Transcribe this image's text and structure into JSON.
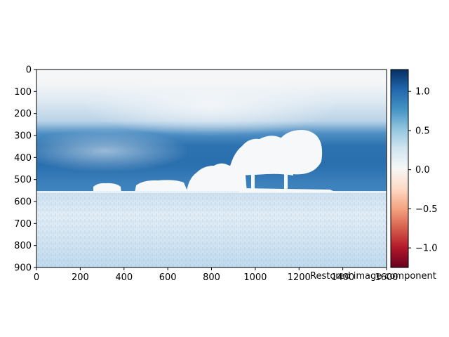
{
  "chart_data": [
    {
      "type": "heatmap",
      "title": "",
      "xlabel": "",
      "ylabel": "",
      "xlim": [
        0,
        1600
      ],
      "ylim": [
        900,
        0
      ],
      "x_ticks": [
        "0",
        "200",
        "400",
        "600",
        "800",
        "1000",
        "1200",
        "1400",
        "1600"
      ],
      "y_ticks": [
        "0",
        "100",
        "200",
        "300",
        "400",
        "500",
        "600",
        "700",
        "800",
        "900"
      ],
      "colormap": "RdBu",
      "image_description_rows": {
        "sky_top": [
          0,
          130
        ],
        "dense_sky_band": [
          300,
          560
        ],
        "horizon": 560,
        "grass": [
          565,
          900
        ]
      },
      "caption": "Restored image component"
    },
    {
      "type": "colorbar",
      "cmap": "RdBu",
      "vmin": -1.25,
      "vmax": 1.28,
      "ticks": [
        "−1.0",
        "−0.5",
        "0.0",
        "0.5",
        "1.0"
      ],
      "tick_values": [
        -1.0,
        -0.5,
        0.0,
        0.5,
        1.0
      ],
      "colors": {
        "low": "#67001f",
        "mid": "#f7f7f7",
        "high": "#053061"
      }
    }
  ]
}
